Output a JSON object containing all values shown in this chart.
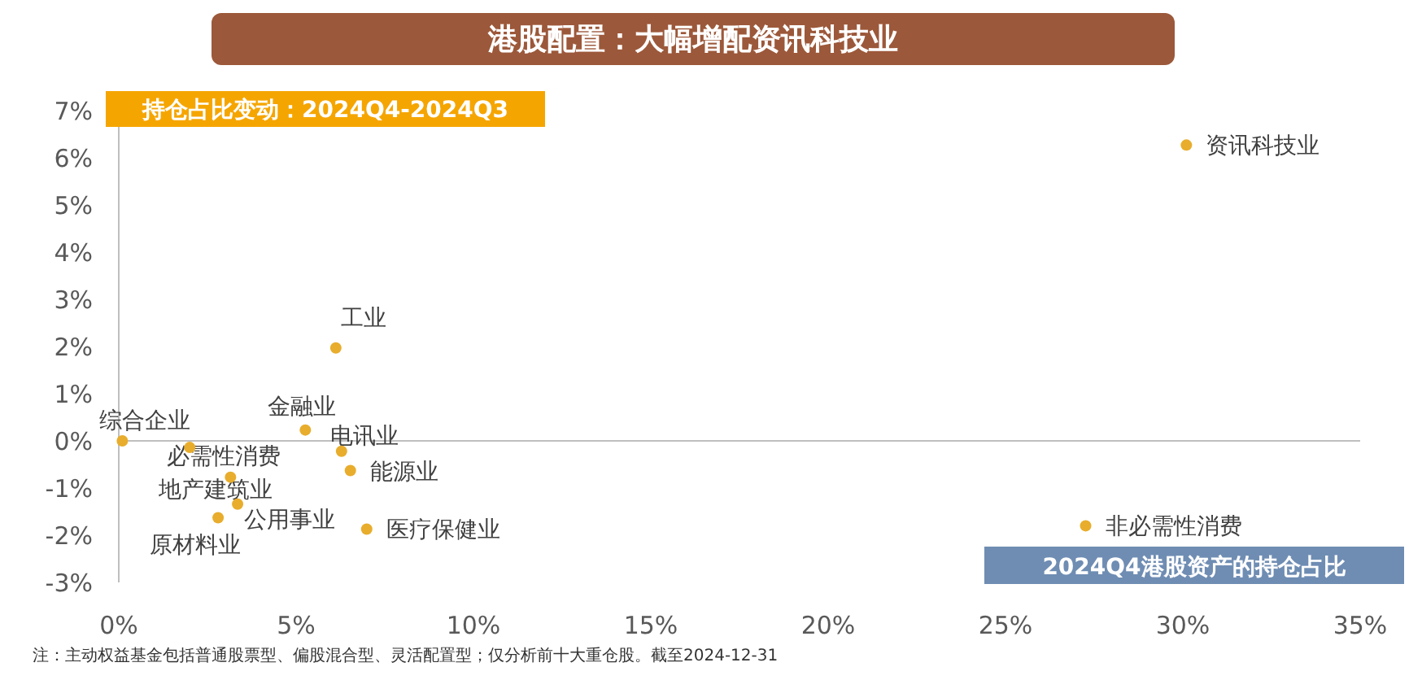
{
  "chart_data": {
    "type": "scatter",
    "title": "港股配置：大幅增配资讯科技业",
    "xlabel": "2024Q4港股资产的持仓占比",
    "ylabel": "持仓占比变动：2024Q4-2024Q3",
    "annotations": [
      "注：主动权益基金包括普通股票型、偏股混合型、灵活配置型；仅分析前十大重仓股。截至2024-12-31"
    ],
    "xlim": [
      0,
      35
    ],
    "ylim": [
      -3,
      7
    ],
    "xticks": [
      {
        "value": 0,
        "label": "0%"
      },
      {
        "value": 5,
        "label": "5%"
      },
      {
        "value": 10,
        "label": "10%"
      },
      {
        "value": 15,
        "label": "15%"
      },
      {
        "value": 20,
        "label": "20%"
      },
      {
        "value": 25,
        "label": "25%"
      },
      {
        "value": 30,
        "label": "30%"
      },
      {
        "value": 35,
        "label": "35%"
      }
    ],
    "yticks": [
      {
        "value": -3,
        "label": "-3%"
      },
      {
        "value": -2,
        "label": "-2%"
      },
      {
        "value": -1,
        "label": "-1%"
      },
      {
        "value": 0,
        "label": "0%"
      },
      {
        "value": 1,
        "label": "1%"
      },
      {
        "value": 2,
        "label": "2%"
      },
      {
        "value": 3,
        "label": "3%"
      },
      {
        "value": 4,
        "label": "4%"
      },
      {
        "value": 5,
        "label": "5%"
      },
      {
        "value": 6,
        "label": "6%"
      },
      {
        "value": 7,
        "label": "7%"
      }
    ],
    "grid": false,
    "legend": false,
    "marker": "circle",
    "ref_lines": [
      {
        "axis": "y",
        "value": 0
      }
    ],
    "series": [
      {
        "name": "综合企业",
        "color": "#e8ad2c",
        "x": [
          0.1
        ],
        "values": [
          0.0
        ]
      },
      {
        "name": "必需性消费",
        "color": "#e8ad2c",
        "x": [
          2.0
        ],
        "values": [
          -0.14
        ]
      },
      {
        "name": "地产建筑业",
        "color": "#e8ad2c",
        "x": [
          3.15
        ],
        "values": [
          -0.77
        ]
      },
      {
        "name": "公用事业",
        "color": "#e8ad2c",
        "x": [
          3.35
        ],
        "values": [
          -1.34
        ]
      },
      {
        "name": "原材料业",
        "color": "#e8ad2c",
        "x": [
          2.8
        ],
        "values": [
          -1.63
        ]
      },
      {
        "name": "金融业",
        "color": "#e8ad2c",
        "x": [
          5.26
        ],
        "values": [
          0.23
        ]
      },
      {
        "name": "工业",
        "color": "#e8ad2c",
        "x": [
          6.12
        ],
        "values": [
          1.97
        ]
      },
      {
        "name": "电讯业",
        "color": "#e8ad2c",
        "x": [
          6.28
        ],
        "values": [
          -0.22
        ]
      },
      {
        "name": "能源业",
        "color": "#e8ad2c",
        "x": [
          6.53
        ],
        "values": [
          -0.63
        ]
      },
      {
        "name": "医疗保健业",
        "color": "#e8ad2c",
        "x": [
          6.99
        ],
        "values": [
          -1.87
        ]
      },
      {
        "name": "资讯科技业",
        "color": "#e8ad2c",
        "x": [
          30.1
        ],
        "values": [
          6.27
        ]
      },
      {
        "name": "非必需性消费",
        "color": "#e8ad2c",
        "x": [
          27.26
        ],
        "values": [
          -1.8
        ]
      }
    ]
  }
}
